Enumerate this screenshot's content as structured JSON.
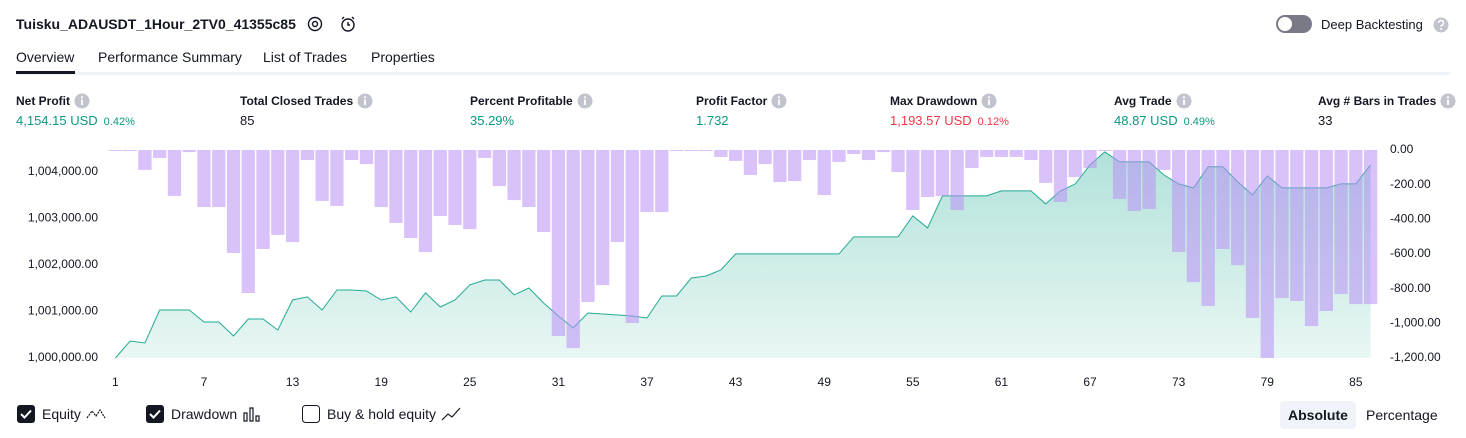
{
  "header": {
    "title": "Tuisku_ADAUSDT_1Hour_2TV0_41355c85",
    "deep_backtesting": "Deep Backtesting",
    "deep_backtesting_on": false
  },
  "tabs": {
    "items": [
      "Overview",
      "Performance Summary",
      "List of Trades",
      "Properties"
    ],
    "active": 0
  },
  "metrics": [
    {
      "label": "Net Profit",
      "value": "4,154.15 USD",
      "percent": "0.42%",
      "color": "#089981"
    },
    {
      "label": "Total Closed Trades",
      "value": "85",
      "color": "#131722"
    },
    {
      "label": "Percent Profitable",
      "value": "35.29%",
      "color": "#089981"
    },
    {
      "label": "Profit Factor",
      "value": "1.732",
      "color": "#089981"
    },
    {
      "label": "Max Drawdown",
      "value": "1,193.57 USD",
      "percent": "0.12%",
      "color": "#f23645"
    },
    {
      "label": "Avg Trade",
      "value": "48.87 USD",
      "percent": "0.49%",
      "color": "#089981"
    },
    {
      "label": "Avg # Bars in Trades",
      "value": "33",
      "color": "#131722"
    }
  ],
  "chart_data": {
    "type": "equity",
    "x": [
      1,
      2,
      3,
      4,
      5,
      6,
      7,
      8,
      9,
      10,
      11,
      12,
      13,
      14,
      15,
      16,
      17,
      18,
      19,
      20,
      21,
      22,
      23,
      24,
      25,
      26,
      27,
      28,
      29,
      30,
      31,
      32,
      33,
      34,
      35,
      36,
      37,
      38,
      39,
      40,
      41,
      42,
      43,
      44,
      45,
      46,
      47,
      48,
      49,
      50,
      51,
      52,
      53,
      54,
      55,
      56,
      57,
      58,
      59,
      60,
      61,
      62,
      63,
      64,
      65,
      66,
      67,
      68,
      69,
      70,
      71,
      72,
      73,
      74,
      75,
      76,
      77,
      78,
      79,
      80,
      81,
      82,
      83,
      84,
      85,
      86
    ],
    "series": [
      {
        "name": "Equity",
        "color": "#22ab94",
        "axis": "y",
        "visible": true,
        "values": [
          1000000,
          1000366,
          1000323,
          1001032,
          1001032,
          1001032,
          1000774,
          1000774,
          1000473,
          1000839,
          1000839,
          1000602,
          1001247,
          1001312,
          1001032,
          1001462,
          1001462,
          1001440,
          1001247,
          1001312,
          1000989,
          1001398,
          1001097,
          1001247,
          1001570,
          1001677,
          1001677,
          1001355,
          1001505,
          1001183,
          1000903,
          1000645,
          1000968,
          1000946,
          1000925,
          1000903,
          1000860,
          1001333,
          1001333,
          1001720,
          1001763,
          1001892,
          1002237,
          1002237,
          1002237,
          1002237,
          1002237,
          1002237,
          1002237,
          1002237,
          1002602,
          1002602,
          1002602,
          1002602,
          1003054,
          1002796,
          1003484,
          1003484,
          1003484,
          1003484,
          1003591,
          1003591,
          1003591,
          1003312,
          1003591,
          1003742,
          1004151,
          1004430,
          1004215,
          1004215,
          1004215,
          1003935,
          1003742,
          1003656,
          1004108,
          1004108,
          1003785,
          1003505,
          1003914,
          1003656,
          1003656,
          1003656,
          1003656,
          1003742,
          1003742,
          1004150
        ]
      },
      {
        "name": "Drawdown",
        "color": "#b98ff5",
        "axis": "y2",
        "visible": true,
        "values": [
          0,
          0,
          -115,
          -46,
          -265,
          -12,
          -329,
          -329,
          -594,
          -825,
          -571,
          -490,
          -531,
          -58,
          -294,
          -323,
          -58,
          -81,
          -329,
          -421,
          -508,
          -589,
          -381,
          -433,
          -456,
          -46,
          -208,
          -289,
          -329,
          -473,
          -1073,
          -1143,
          -877,
          -779,
          -531,
          -998,
          -358,
          -358,
          0,
          0,
          0,
          -40,
          -63,
          -144,
          -81,
          -185,
          -179,
          -58,
          -260,
          -69,
          -23,
          -58,
          -12,
          -127,
          -346,
          -271,
          -265,
          -346,
          -104,
          -40,
          -40,
          -40,
          -58,
          -190,
          -300,
          -156,
          -104,
          0,
          -283,
          -352,
          -340,
          -115,
          -589,
          -762,
          -900,
          -571,
          -664,
          -969,
          -1200,
          -854,
          -871,
          -1016,
          -929,
          -831,
          -889,
          -889
        ]
      }
    ],
    "buy_hold": {
      "name": "Buy & hold equity",
      "visible": false
    },
    "xlim": [
      0.5,
      86.5
    ],
    "xticks": [
      1,
      7,
      13,
      19,
      25,
      31,
      37,
      43,
      49,
      55,
      61,
      67,
      73,
      79,
      85
    ],
    "ylim": [
      1000000,
      1004470
    ],
    "yticks": [
      {
        "value": 1000000,
        "label": "1,000,000.00"
      },
      {
        "value": 1001000,
        "label": "1,001,000.00"
      },
      {
        "value": 1002000,
        "label": "1,002,000.00"
      },
      {
        "value": 1003000,
        "label": "1,003,000.00"
      },
      {
        "value": 1004000,
        "label": "1,004,000.00"
      }
    ],
    "y2lim": [
      -1200,
      0
    ],
    "y2ticks": [
      {
        "value": 0,
        "label": "0.00"
      },
      {
        "value": -200,
        "label": "-200.00"
      },
      {
        "value": -400,
        "label": "-400.00"
      },
      {
        "value": -600,
        "label": "-600.00"
      },
      {
        "value": -800,
        "label": "-800.00"
      },
      {
        "value": -1000,
        "label": "-1,000.00"
      },
      {
        "value": -1200,
        "label": "-1,200.00"
      }
    ]
  },
  "scale_buttons": {
    "items": [
      "Absolute",
      "Percentage"
    ],
    "active": 0
  }
}
